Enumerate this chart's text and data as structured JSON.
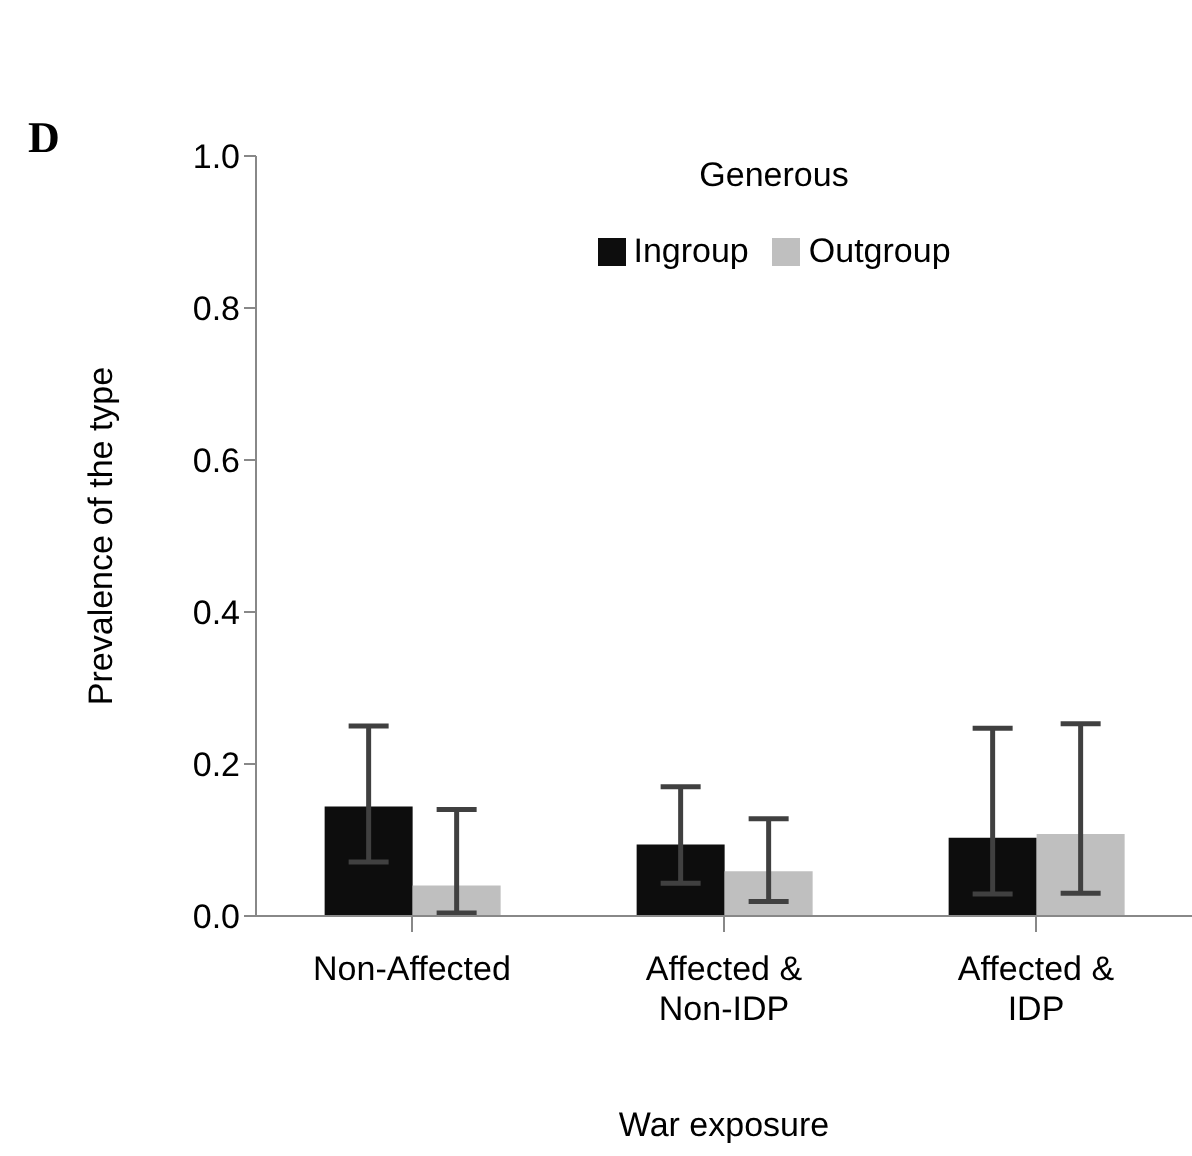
{
  "chart_data": {
    "type": "bar",
    "xlabel": "War exposure",
    "ylabel": "Prevalence of the type",
    "legend_title": "Generous",
    "annotations": [
      "D"
    ],
    "categories": [
      "Non-Affected",
      "Affected & Non-IDP",
      "Affected & IDP"
    ],
    "series": [
      {
        "name": "Ingroup",
        "color": "#0d0d0d",
        "values": [
          0.144,
          0.094,
          0.103
        ],
        "errors": [
          [
            0.071,
            0.25
          ],
          [
            0.043,
            0.17
          ],
          [
            0.029,
            0.247
          ]
        ]
      },
      {
        "name": "Outgroup",
        "color": "#bfbfbf",
        "values": [
          0.04,
          0.059,
          0.108
        ],
        "errors": [
          [
            0.004,
            0.14
          ],
          [
            0.019,
            0.128
          ],
          [
            0.03,
            0.253
          ]
        ]
      }
    ],
    "ylim": [
      0,
      1
    ],
    "yticks": [
      {
        "value": 0,
        "label": "0.0"
      },
      {
        "value": 0.2,
        "label": "0.2"
      },
      {
        "value": 0.4,
        "label": "0.4"
      },
      {
        "value": 0.6,
        "label": "0.6"
      },
      {
        "value": 0.8,
        "label": "0.8"
      },
      {
        "value": 1,
        "label": "1.0"
      }
    ],
    "grid": false,
    "legend": "top"
  }
}
